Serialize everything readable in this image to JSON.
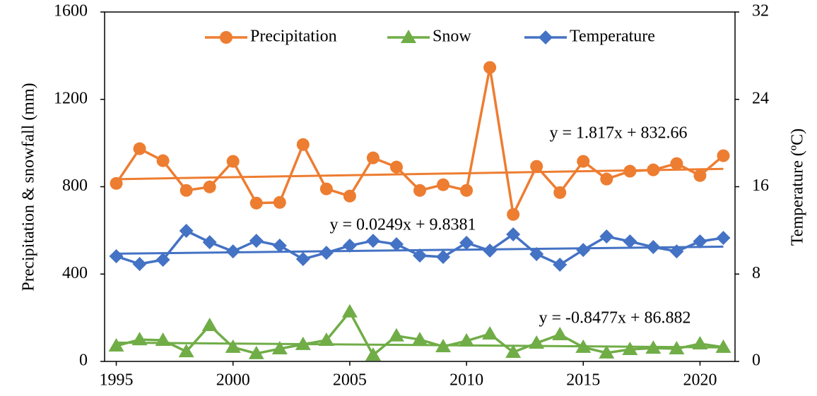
{
  "chart_data": {
    "type": "line",
    "y_label": "Precipitation & snowfall (mm)",
    "y2_label": "Temperature (ºC)",
    "x": [
      1995,
      1996,
      1997,
      1998,
      1999,
      2000,
      2001,
      2002,
      2003,
      2004,
      2005,
      2006,
      2007,
      2008,
      2009,
      2010,
      2011,
      2012,
      2013,
      2014,
      2015,
      2016,
      2017,
      2018,
      2019,
      2020,
      2021
    ],
    "xlim": [
      1994.5,
      2021.5
    ],
    "xticks": [
      1995,
      2000,
      2005,
      2010,
      2015,
      2020
    ],
    "ylim": [
      0,
      1600
    ],
    "yticks": [
      0,
      400,
      800,
      1200,
      1600
    ],
    "y2lim": [
      0,
      32
    ],
    "y2ticks": [
      0,
      8,
      16,
      24,
      32
    ],
    "legend": "top",
    "series": [
      {
        "name": "Precipitation",
        "color": "#ED7D31",
        "marker": "circle",
        "values": [
          815,
          974,
          919,
          783,
          799,
          916,
          725,
          728,
          993,
          790,
          757,
          932,
          890,
          783,
          809,
          783,
          1346,
          673,
          893,
          773,
          916,
          835,
          871,
          877,
          906,
          851,
          942
        ]
      },
      {
        "name": "Snow",
        "color": "#70AD47",
        "marker": "triangle",
        "values": [
          71,
          100,
          97,
          45,
          165,
          65,
          36,
          58,
          78,
          97,
          227,
          29,
          117,
          100,
          68,
          94,
          126,
          42,
          84,
          123,
          65,
          39,
          55,
          61,
          58,
          81,
          65
        ]
      },
      {
        "name": "Temperature",
        "color": "#4472C4",
        "marker": "diamond",
        "axis": "y2",
        "values": [
          9.63,
          8.92,
          9.31,
          11.96,
          10.92,
          10.08,
          11.05,
          10.6,
          9.37,
          9.95,
          10.6,
          11.05,
          10.73,
          9.7,
          9.57,
          10.86,
          10.15,
          11.64,
          9.83,
          8.86,
          10.21,
          11.44,
          10.99,
          10.47,
          10.08,
          10.99,
          11.31
        ]
      }
    ],
    "trendlines": [
      {
        "series": 0,
        "label": "y = 1.817x + 832.66",
        "slope": 1.817,
        "intercept": 832.66
      },
      {
        "series": 2,
        "label": "y = 0.0249x + 9.8381",
        "slope": 0.0249,
        "intercept": 9.8381
      },
      {
        "series": 1,
        "label": "y = -0.8477x + 86.882",
        "slope": -0.8477,
        "intercept": 86.882
      }
    ]
  }
}
